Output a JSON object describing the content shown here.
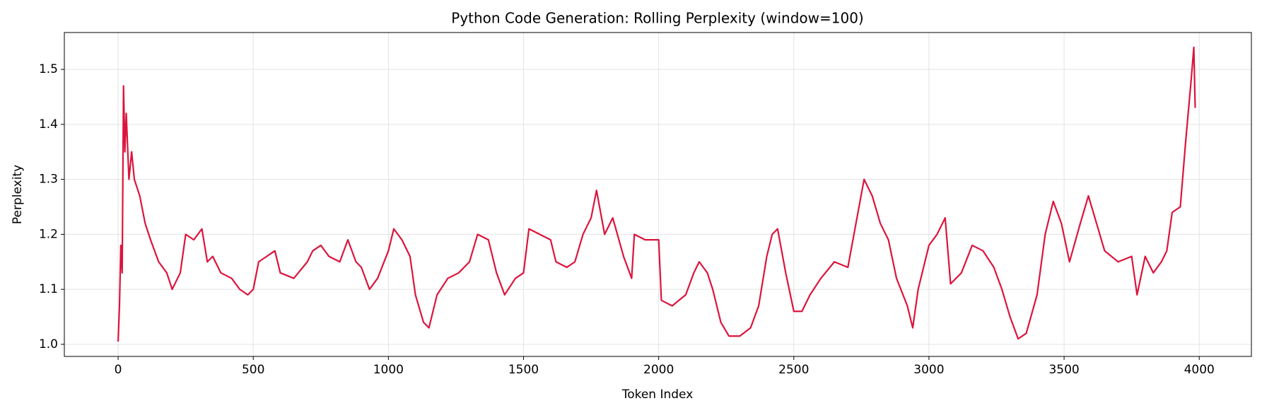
{
  "chart_data": {
    "type": "line",
    "title": "Python Code Generation: Rolling Perplexity (window=100)",
    "x_label": "Token Index",
    "y_label": "Perplexity",
    "xlim": [
      -199,
      4193
    ],
    "ylim": [
      0.978,
      1.567
    ],
    "xticks": [
      0,
      500,
      1000,
      1500,
      2000,
      2500,
      3000,
      3500,
      4000
    ],
    "yticks": [
      {
        "value": 1,
        "label": "1.0"
      },
      1.1,
      1.2,
      1.3,
      1.4,
      1.5
    ],
    "grid": true,
    "x": [
      0,
      5,
      10,
      15,
      20,
      25,
      30,
      40,
      50,
      60,
      80,
      100,
      120,
      150,
      180,
      200,
      230,
      250,
      280,
      310,
      330,
      350,
      380,
      420,
      450,
      480,
      500,
      520,
      550,
      580,
      600,
      650,
      700,
      720,
      750,
      780,
      820,
      850,
      880,
      900,
      930,
      960,
      1000,
      1020,
      1050,
      1080,
      1100,
      1130,
      1150,
      1180,
      1220,
      1260,
      1300,
      1330,
      1370,
      1400,
      1430,
      1470,
      1500,
      1520,
      1560,
      1600,
      1620,
      1660,
      1690,
      1720,
      1750,
      1770,
      1800,
      1830,
      1870,
      1900,
      1910,
      1950,
      2000,
      2010,
      2050,
      2100,
      2130,
      2150,
      2180,
      2200,
      2230,
      2260,
      2300,
      2340,
      2370,
      2400,
      2420,
      2440,
      2470,
      2500,
      2530,
      2560,
      2600,
      2650,
      2700,
      2730,
      2760,
      2790,
      2820,
      2850,
      2880,
      2920,
      2940,
      2960,
      3000,
      3030,
      3060,
      3080,
      3120,
      3160,
      3200,
      3240,
      3270,
      3300,
      3330,
      3360,
      3400,
      3430,
      3460,
      3490,
      3520,
      3560,
      3590,
      3620,
      3650,
      3700,
      3750,
      3770,
      3800,
      3830,
      3860,
      3880,
      3900,
      3930,
      3950,
      3970,
      3980,
      3985
    ],
    "series": [
      {
        "name": "Rolling Perplexity",
        "color": "#dc143c",
        "values": [
          1.005,
          1.07,
          1.18,
          1.13,
          1.47,
          1.35,
          1.42,
          1.3,
          1.35,
          1.3,
          1.27,
          1.22,
          1.19,
          1.15,
          1.13,
          1.1,
          1.13,
          1.2,
          1.19,
          1.21,
          1.15,
          1.16,
          1.13,
          1.12,
          1.1,
          1.09,
          1.1,
          1.15,
          1.16,
          1.17,
          1.13,
          1.12,
          1.15,
          1.17,
          1.18,
          1.16,
          1.15,
          1.19,
          1.15,
          1.14,
          1.1,
          1.12,
          1.17,
          1.21,
          1.19,
          1.16,
          1.09,
          1.04,
          1.03,
          1.09,
          1.12,
          1.13,
          1.15,
          1.2,
          1.19,
          1.13,
          1.09,
          1.12,
          1.13,
          1.21,
          1.2,
          1.19,
          1.15,
          1.14,
          1.15,
          1.2,
          1.23,
          1.28,
          1.2,
          1.23,
          1.16,
          1.12,
          1.2,
          1.19,
          1.19,
          1.08,
          1.07,
          1.09,
          1.13,
          1.15,
          1.13,
          1.1,
          1.04,
          1.015,
          1.015,
          1.03,
          1.07,
          1.16,
          1.2,
          1.21,
          1.13,
          1.06,
          1.06,
          1.09,
          1.12,
          1.15,
          1.14,
          1.22,
          1.3,
          1.27,
          1.22,
          1.19,
          1.12,
          1.07,
          1.03,
          1.1,
          1.18,
          1.2,
          1.23,
          1.11,
          1.13,
          1.18,
          1.17,
          1.14,
          1.1,
          1.05,
          1.01,
          1.02,
          1.09,
          1.2,
          1.26,
          1.22,
          1.15,
          1.22,
          1.27,
          1.22,
          1.17,
          1.15,
          1.16,
          1.09,
          1.16,
          1.13,
          1.15,
          1.17,
          1.24,
          1.25,
          1.37,
          1.48,
          1.54,
          1.43
        ]
      }
    ]
  }
}
